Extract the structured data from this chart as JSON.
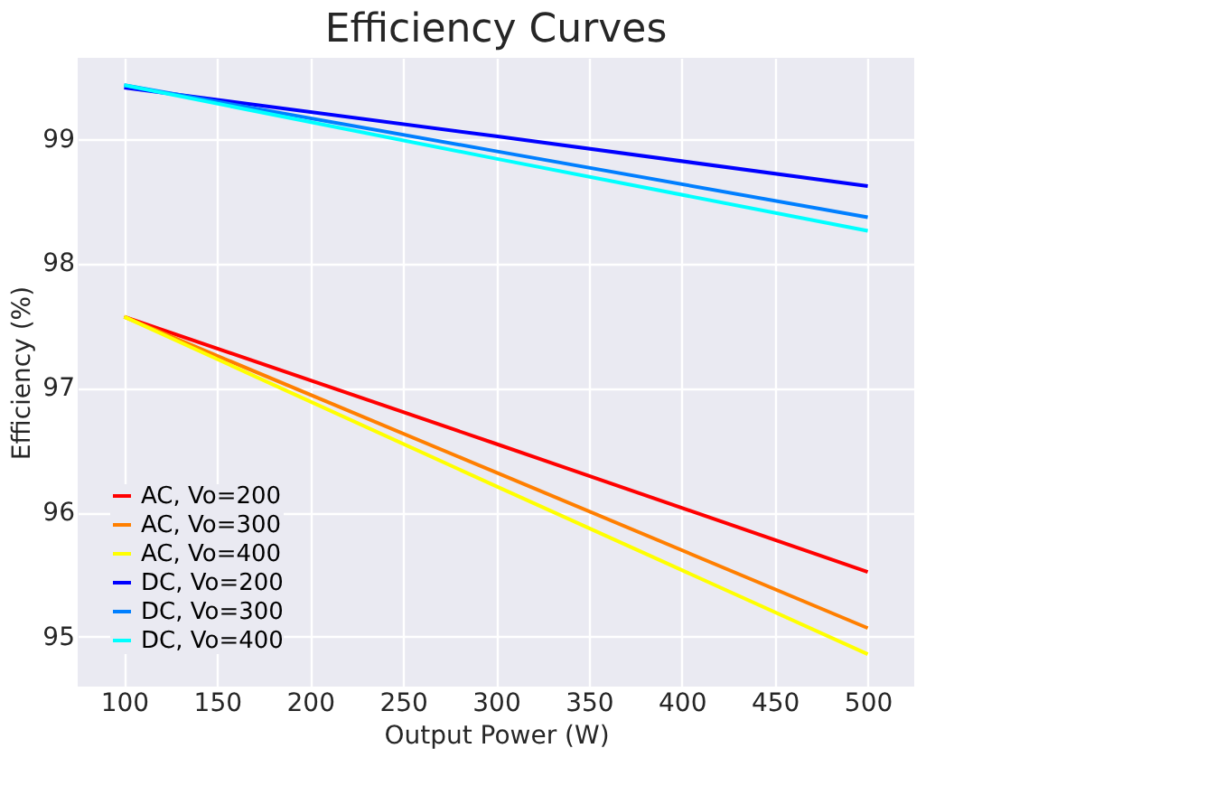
{
  "chart_data": {
    "type": "line",
    "title": "Efficiency Curves",
    "xlabel": "Output Power (W)",
    "ylabel": "Efficiency (%)",
    "x": [
      100,
      300,
      500
    ],
    "series": [
      {
        "name": "AC, Vo=200",
        "color": "#ff0000",
        "values": [
          97.57,
          96.55,
          95.52
        ]
      },
      {
        "name": "AC, Vo=300",
        "color": "#ff7f00",
        "values": [
          97.57,
          96.32,
          95.07
        ]
      },
      {
        "name": "AC, Vo=400",
        "color": "#ffff00",
        "values": [
          97.57,
          96.21,
          94.86
        ]
      },
      {
        "name": "DC, Vo=200",
        "color": "#0000ff",
        "values": [
          99.41,
          99.02,
          98.62
        ]
      },
      {
        "name": "DC, Vo=300",
        "color": "#007fff",
        "values": [
          99.43,
          98.9,
          98.37
        ]
      },
      {
        "name": "DC, Vo=400",
        "color": "#00ffff",
        "values": [
          99.43,
          98.84,
          98.26
        ]
      }
    ],
    "xlim": [
      75,
      525
    ],
    "xticks": [
      100,
      150,
      200,
      250,
      300,
      350,
      400,
      450,
      500
    ],
    "ylim": [
      94.6,
      99.65
    ],
    "yticks": [
      95,
      96,
      97,
      98,
      99
    ],
    "grid": true,
    "legend": "bottom left",
    "marker": "none",
    "line_style": "solid"
  }
}
